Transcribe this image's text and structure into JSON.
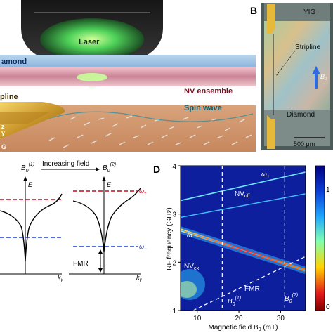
{
  "panels": {
    "B": {
      "letter": "B",
      "yig": "YIG",
      "stripline": "Stripline",
      "b0": "B",
      "b0_sub": "0",
      "diamond": "Diamond",
      "scale_bar": "500 μm"
    },
    "D": {
      "letter": "D"
    }
  },
  "panel_a": {
    "laser": "Laser",
    "diamond": "amond",
    "nv_ensemble": "NV ensemble",
    "stripline": "pline",
    "spin_wave": "Spin wave",
    "frag_z": "z",
    "frag_y": "y",
    "frag_g": "G"
  },
  "panel_c": {
    "b_left": "B",
    "b_left_sub": "0",
    "b_left_sup": "(1)",
    "arrow_label": "Increasing field",
    "b_right": "B",
    "b_right_sub": "0",
    "b_right_sup": "(2)",
    "energy_left": "E",
    "energy_right": "E",
    "omega_plus": "ω",
    "omega_plus_sub": "+",
    "omega_minus": "ω",
    "omega_minus_sub": "−",
    "fmr": "FMR",
    "ky_left": "k",
    "ky_right": "k",
    "ky_sub": "y"
  },
  "chart_data": {
    "type": "heatmap",
    "xlabel": "Magnetic field B",
    "xlabel_sub": "0",
    "xlabel_unit": " (mT)",
    "ylabel": "RF frequency (GHz)",
    "xlim": [
      6,
      36
    ],
    "ylim": [
      1,
      4
    ],
    "xticks": [
      "10",
      "20",
      "30"
    ],
    "yticks": [
      "1",
      "2",
      "3",
      "4"
    ],
    "colorbar_ticks": [
      "1",
      "0"
    ],
    "dashed_fields": [
      16,
      31
    ],
    "lines": [
      {
        "name": "ω+",
        "points": [
          [
            6,
            3.28
          ],
          [
            36,
            3.87
          ]
        ]
      },
      {
        "name": "NVoff",
        "points": [
          [
            6,
            2.93
          ],
          [
            36,
            3.42
          ]
        ]
      },
      {
        "name": "ω−",
        "points": [
          [
            6,
            2.67
          ],
          [
            36,
            1.83
          ]
        ]
      },
      {
        "name": "FMR",
        "points": [
          [
            9,
            1.0
          ],
          [
            36,
            2.12
          ]
        ]
      }
    ],
    "annotations": {
      "omega_plus": "ω",
      "omega_plus_sub": "+",
      "nv_off": "NV",
      "nv_off_sub": "off",
      "omega_minus": "ω",
      "omega_minus_sub": "−",
      "nv_ex": "NV",
      "nv_ex_sub": "ex",
      "fmr": "FMR",
      "b1": "B",
      "b1_sub": "0",
      "b1_sup": "(1)",
      "b2": "B",
      "b2_sub": "0",
      "b2_sup": "(2)"
    }
  }
}
